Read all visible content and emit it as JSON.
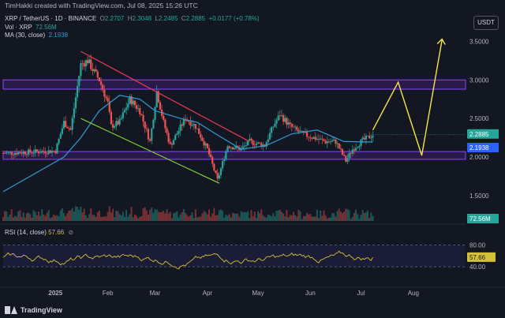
{
  "header": {
    "created_by": "TimHakki created with TradingView.com, Jul 08, 2025 15:26 UTC"
  },
  "legend": {
    "symbol": "XRP / TetherUS · 1D · BINANCE",
    "open_label": "O",
    "open": "2.2707",
    "high_label": "H",
    "high": "2.3048",
    "low_label": "L",
    "low": "2.2485",
    "close_label": "C",
    "close": "2.2885",
    "change": "+0.0177 (+0.78%)",
    "vol_label": "Vol · XRP",
    "vol_value": "72.56M",
    "ma_label": "MA (30, close)",
    "ma_value": "2.1938"
  },
  "currency_button": "USDT",
  "rsi": {
    "label": "RSI (14, close)",
    "value": "57.66",
    "icon": "eye-off-icon"
  },
  "brand": {
    "name": "TradingView",
    "icon": "tradingview-logo"
  },
  "colors": {
    "background": "#131722",
    "up": "#26a69a",
    "down": "#ef5350",
    "ma": "#2f9bd6",
    "zone_fill": "#3a1f6e",
    "zone_border": "#8e44ff",
    "projection": "#f5e642",
    "trend_upper": "#ef3b55",
    "trend_lower": "#7fd13b",
    "rsi_line": "#d4c13a"
  },
  "chart_data": {
    "type": "candlestick",
    "interval": "1D",
    "x_tick_labels": [
      "2025",
      "Feb",
      "Mar",
      "Apr",
      "May",
      "Jun",
      "Jul",
      "Aug"
    ],
    "y_tick_labels": [
      "1.5000",
      "2.0000",
      "2.5000",
      "3.0000",
      "3.5000"
    ],
    "ylim": [
      1.15,
      3.75
    ],
    "series": [
      {
        "name": "price",
        "close_points": [
          [
            "Dec 2024",
            2.05
          ],
          [
            "Jan 1",
            2.08
          ],
          [
            "Jan 6",
            2.45
          ],
          [
            "Jan 10",
            2.35
          ],
          [
            "Jan 16",
            3.2
          ],
          [
            "Jan 20",
            3.25
          ],
          [
            "Jan 24",
            3.1
          ],
          [
            "Jan 27",
            3.0
          ],
          [
            "Feb 1",
            2.7
          ],
          [
            "Feb 3",
            2.4
          ],
          [
            "Feb 8",
            2.45
          ],
          [
            "Feb 14",
            2.75
          ],
          [
            "Feb 20",
            2.6
          ],
          [
            "Feb 26",
            2.2
          ],
          [
            "Mar 2",
            2.85
          ],
          [
            "Mar 6",
            2.45
          ],
          [
            "Mar 10",
            2.15
          ],
          [
            "Mar 19",
            2.5
          ],
          [
            "Mar 25",
            2.4
          ],
          [
            "Apr 1",
            2.1
          ],
          [
            "Apr 7",
            1.7
          ],
          [
            "Apr 13",
            2.15
          ],
          [
            "Apr 21",
            2.1
          ],
          [
            "Apr 26",
            2.2
          ],
          [
            "May 5",
            2.15
          ],
          [
            "May 10",
            2.4
          ],
          [
            "May 14",
            2.55
          ],
          [
            "May 20",
            2.4
          ],
          [
            "May 27",
            2.3
          ],
          [
            "Jun 3",
            2.25
          ],
          [
            "Jun 10",
            2.2
          ],
          [
            "Jun 16",
            2.2
          ],
          [
            "Jun 22",
            1.95
          ],
          [
            "Jun 26",
            2.1
          ],
          [
            "Jul 1",
            2.2
          ],
          [
            "Jul 5",
            2.25
          ],
          [
            "Jul 8",
            2.2885
          ]
        ]
      },
      {
        "name": "MA (30, close)",
        "points": [
          [
            "Dec 2024",
            1.55
          ],
          [
            "Jan 6",
            2.0
          ],
          [
            "Jan 16",
            2.25
          ],
          [
            "Jan 27",
            2.6
          ],
          [
            "Feb 8",
            2.8
          ],
          [
            "Feb 20",
            2.75
          ],
          [
            "Mar 1",
            2.6
          ],
          [
            "Mar 16",
            2.5
          ],
          [
            "Mar 26",
            2.45
          ],
          [
            "Apr 6",
            2.3
          ],
          [
            "Apr 21",
            2.1
          ],
          [
            "May 6",
            2.15
          ],
          [
            "May 21",
            2.3
          ],
          [
            "Jun 5",
            2.35
          ],
          [
            "Jun 21",
            2.2
          ],
          [
            "Jul 8",
            2.1938
          ]
        ]
      }
    ],
    "price_labels": {
      "last": "2.2885",
      "ma": "2.1938",
      "volume": "72.56M"
    },
    "zones": [
      {
        "label": "resistance",
        "from": 2.88,
        "to": 3.0
      },
      {
        "label": "support",
        "from": 1.97,
        "to": 2.07
      }
    ],
    "trendlines": [
      {
        "name": "upper",
        "start": [
          "Jan 16",
          3.37
        ],
        "end": [
          "Apr 26",
          2.2
        ]
      },
      {
        "name": "lower",
        "start": [
          "Jan 16",
          2.5
        ],
        "end": [
          "Apr 8",
          1.66
        ]
      }
    ],
    "projection": [
      [
        "Jul 8",
        2.35
      ],
      [
        "Jul 23",
        2.97
      ],
      [
        "Aug 6",
        2.02
      ],
      [
        "Aug 18",
        3.52
      ]
    ],
    "rsi": {
      "ylim": [
        20,
        95
      ],
      "levels": [
        40,
        80
      ],
      "current": 57.66,
      "y_tick_labels": [
        "40.00",
        "80.00"
      ]
    }
  }
}
